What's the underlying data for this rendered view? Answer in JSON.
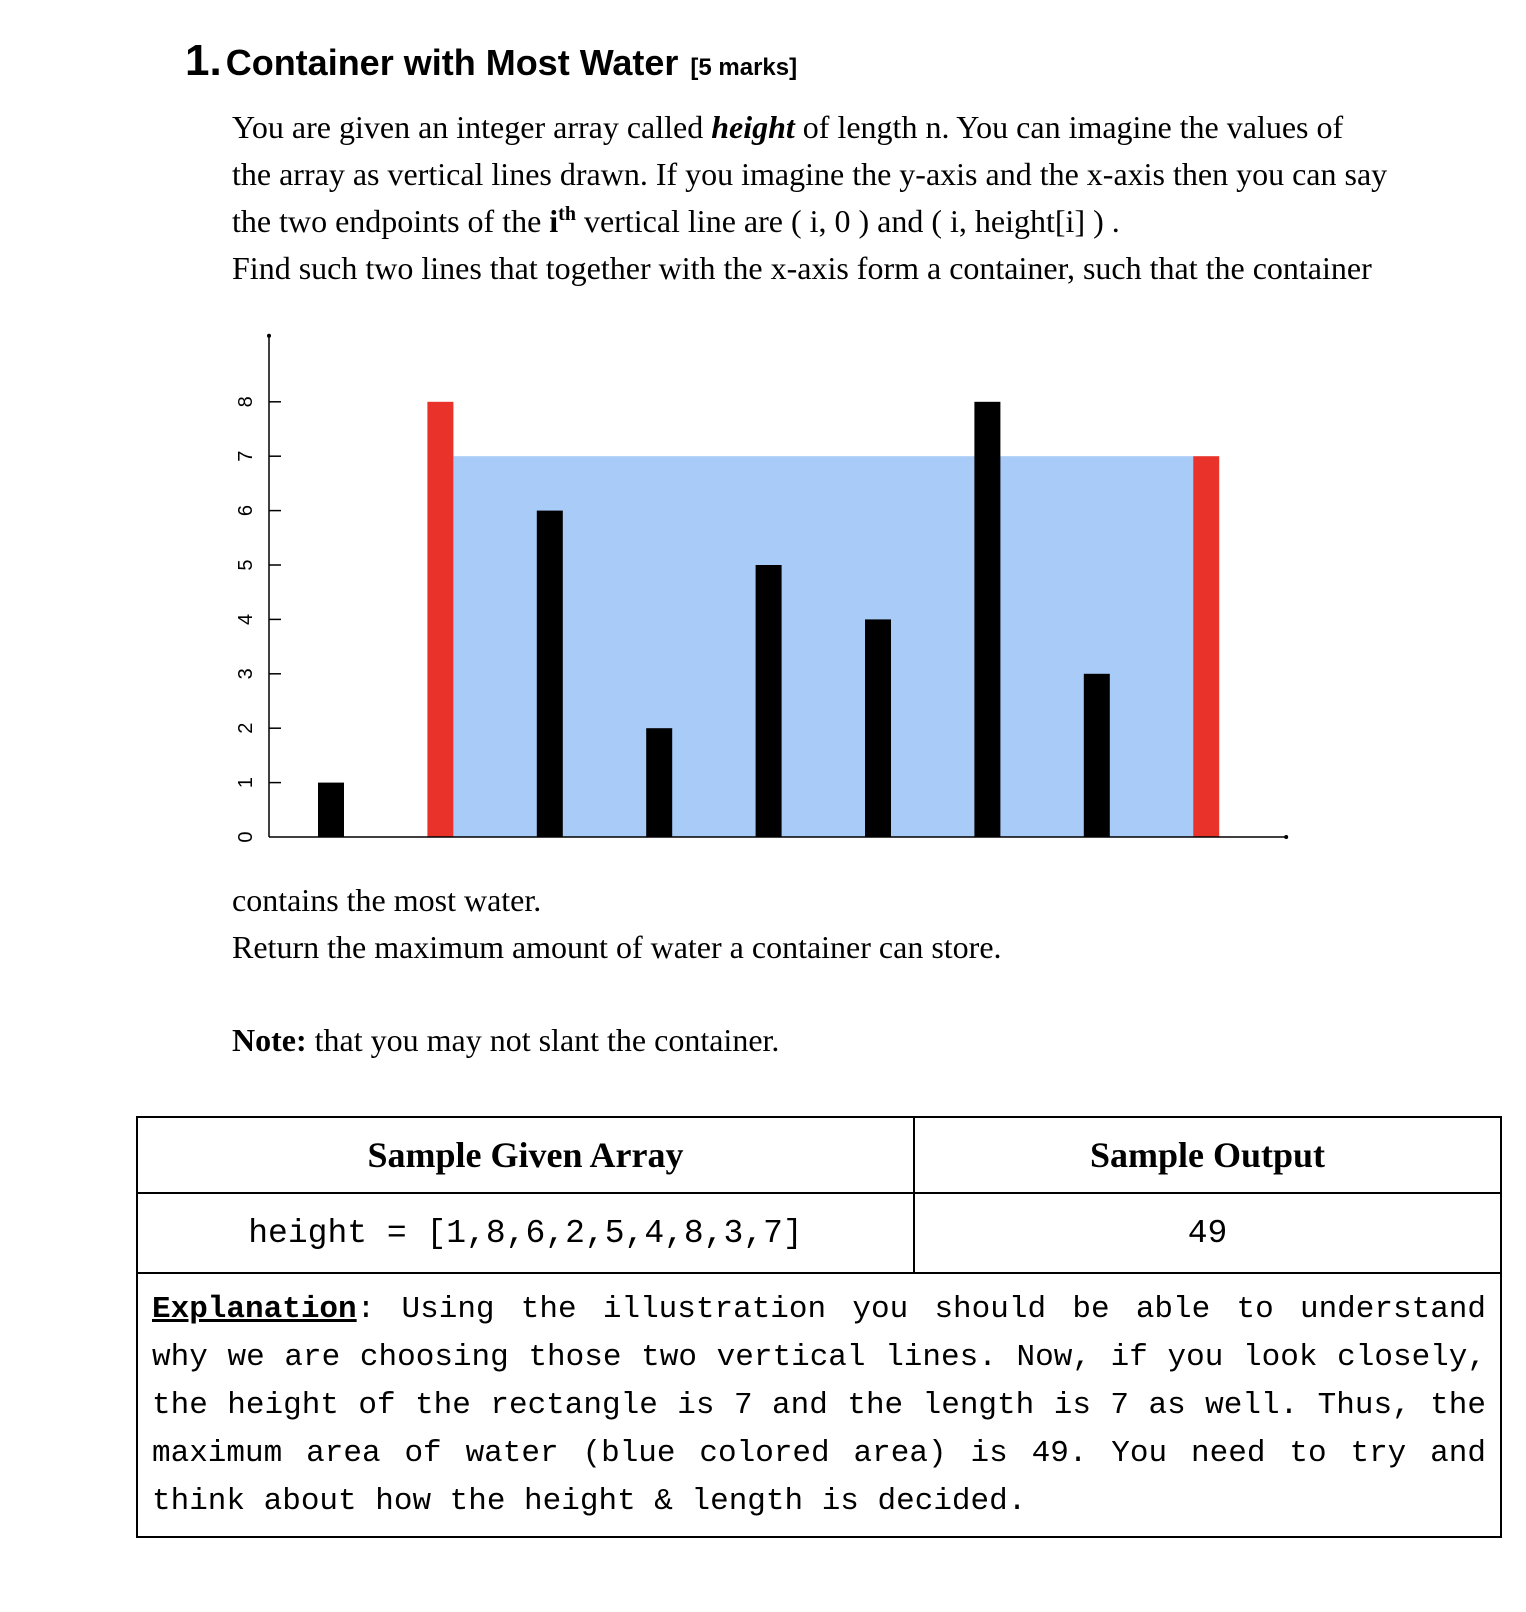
{
  "question": {
    "number": "1.",
    "title": "Container with Most Water",
    "marks": "[5 marks]"
  },
  "intro": {
    "l1_a": "You are given an integer array called ",
    "l1_b": "height",
    "l1_c": " of length n. You can imagine the values of",
    "l2": "the array as vertical lines drawn. If you imagine the y-axis and the x-axis then you can say",
    "l3_a": "the two endpoints of the ",
    "l3_i": "i",
    "l3_sup": "th",
    "l3_c": " vertical line are ( i, 0 ) and ( i, height[i] ) .",
    "l4": "Find such two lines that together with the x-axis form a container, such that the container"
  },
  "after": {
    "l5": "contains the most water.",
    "l6": "Return the maximum amount of water a container can store."
  },
  "note": {
    "label": "Note:",
    "text": " that you may not slant the container."
  },
  "colors": {
    "bar": "#000000",
    "highlight": "#e8322a",
    "water": "#a8cbf7"
  },
  "chart_data": {
    "type": "bar",
    "values": [
      1,
      8,
      6,
      2,
      5,
      4,
      8,
      3,
      7
    ],
    "highlight_indices": [
      1,
      8
    ],
    "water_level": 7,
    "ylim": [
      0,
      8
    ],
    "yticks": [
      "0",
      "1",
      "2",
      "3",
      "4",
      "5",
      "6",
      "7",
      "8"
    ],
    "title": "",
    "xlabel": "",
    "ylabel": ""
  },
  "table": {
    "header_left": "Sample Given Array",
    "header_right": "Sample Output",
    "input": "height = [1,8,6,2,5,4,8,3,7]",
    "output": "49",
    "explanation_label": "Explanation",
    "explanation_text": ": Using the illustration you should be able to understand why we are choosing those two vertical lines. Now, if you look closely, the height of the rectangle is 7 and the length is 7 as well. Thus, the maximum area of water (blue colored area) is 49. You need to try and think about how the height & length is decided."
  }
}
